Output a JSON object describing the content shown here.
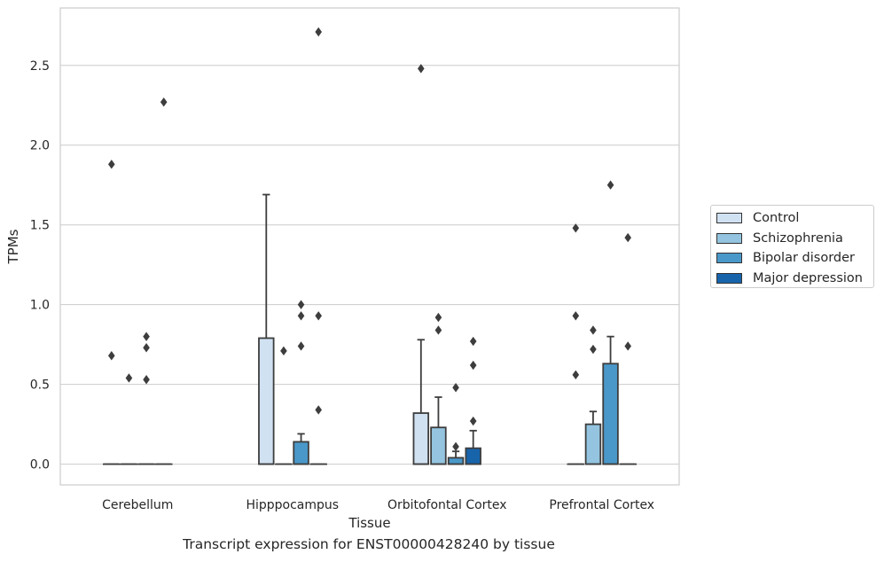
{
  "chart_data": {
    "type": "boxplot",
    "caption": "Transcript expression for ENST00000428240 by tissue",
    "xlabel": "Tissue",
    "ylabel": "TPMs",
    "ylim": [
      -0.13,
      2.86
    ],
    "yticks": [
      "0.0",
      "0.5",
      "1.0",
      "1.5",
      "2.0",
      "2.5"
    ],
    "grid": "horizontal",
    "legend_position": "right",
    "categories": [
      "Cerebellum",
      "Hipppocampus",
      "Orbitofontal Cortex",
      "Prefrontal Cortex"
    ],
    "series": [
      {
        "name": "Control",
        "color": "#d0e1f2",
        "boxes": [
          {
            "q1": 0,
            "median": 0,
            "q3": 0,
            "whisker_low": 0,
            "whisker_high": 0,
            "outliers": [
              1.88,
              0.68
            ]
          },
          {
            "q1": 0,
            "median": 0,
            "q3": 0.79,
            "whisker_low": 0,
            "whisker_high": 1.69,
            "outliers": []
          },
          {
            "q1": 0,
            "median": 0,
            "q3": 0.32,
            "whisker_low": 0,
            "whisker_high": 0.78,
            "outliers": [
              2.48
            ]
          },
          {
            "q1": 0,
            "median": 0,
            "q3": 0,
            "whisker_low": 0,
            "whisker_high": 0,
            "outliers": [
              1.48,
              0.93,
              0.56
            ]
          }
        ]
      },
      {
        "name": "Schizophrenia",
        "color": "#94c4df",
        "boxes": [
          {
            "q1": 0,
            "median": 0,
            "q3": 0,
            "whisker_low": 0,
            "whisker_high": 0,
            "outliers": [
              0.54
            ]
          },
          {
            "q1": 0,
            "median": 0,
            "q3": 0,
            "whisker_low": 0,
            "whisker_high": 0,
            "outliers": [
              0.71
            ]
          },
          {
            "q1": 0,
            "median": 0,
            "q3": 0.23,
            "whisker_low": 0,
            "whisker_high": 0.42,
            "outliers": [
              0.92,
              0.84
            ]
          },
          {
            "q1": 0,
            "median": 0,
            "q3": 0.25,
            "whisker_low": 0,
            "whisker_high": 0.33,
            "outliers": [
              0.84,
              0.72
            ]
          }
        ]
      },
      {
        "name": "Bipolar disorder",
        "color": "#4a98c9",
        "boxes": [
          {
            "q1": 0,
            "median": 0,
            "q3": 0,
            "whisker_low": 0,
            "whisker_high": 0,
            "outliers": [
              0.8,
              0.73,
              0.53
            ]
          },
          {
            "q1": 0,
            "median": 0,
            "q3": 0.14,
            "whisker_low": 0,
            "whisker_high": 0.19,
            "outliers": [
              1.0,
              0.93,
              0.74
            ]
          },
          {
            "q1": 0,
            "median": 0,
            "q3": 0.04,
            "whisker_low": 0,
            "whisker_high": 0.08,
            "outliers": [
              0.48,
              0.11
            ]
          },
          {
            "q1": 0,
            "median": 0,
            "q3": 0.63,
            "whisker_low": 0,
            "whisker_high": 0.8,
            "outliers": [
              1.75
            ]
          }
        ]
      },
      {
        "name": "Major depression",
        "color": "#1764ab",
        "boxes": [
          {
            "q1": 0,
            "median": 0,
            "q3": 0,
            "whisker_low": 0,
            "whisker_high": 0,
            "outliers": [
              2.27
            ]
          },
          {
            "q1": 0,
            "median": 0,
            "q3": 0,
            "whisker_low": 0,
            "whisker_high": 0,
            "outliers": [
              2.71,
              0.93,
              0.34
            ]
          },
          {
            "q1": 0,
            "median": 0,
            "q3": 0.1,
            "whisker_low": 0,
            "whisker_high": 0.21,
            "outliers": [
              0.77,
              0.62,
              0.27
            ]
          },
          {
            "q1": 0,
            "median": 0,
            "q3": 0,
            "whisker_low": 0,
            "whisker_high": 0,
            "outliers": [
              1.42,
              0.74
            ]
          }
        ]
      }
    ]
  }
}
